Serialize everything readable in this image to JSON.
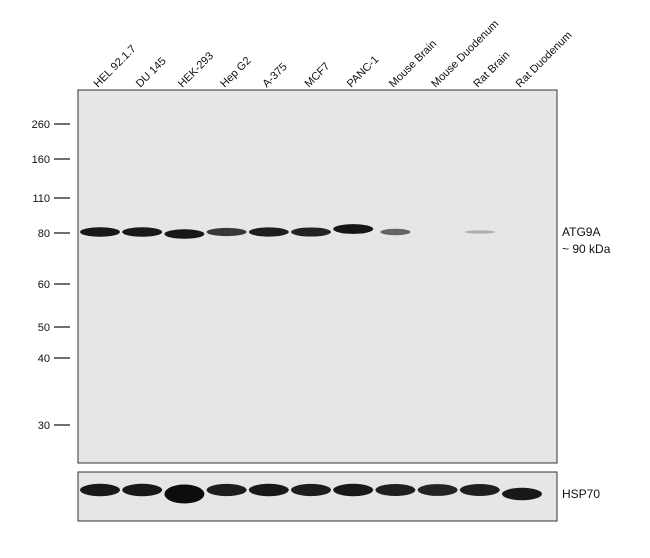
{
  "lanes": [
    "HEL 92.1.7",
    "DU 145",
    "HEK-293",
    "Hep G2",
    "A-375",
    "MCF7",
    "PANC-1",
    "Mouse Brain",
    "Mouse Duodenum",
    "Rat Brain",
    "Rat Duodenum"
  ],
  "markers": [
    {
      "label": "260",
      "kda": 260
    },
    {
      "label": "160",
      "kda": 160
    },
    {
      "label": "110",
      "kda": 110
    },
    {
      "label": "80",
      "kda": 80
    },
    {
      "label": "60",
      "kda": 60
    },
    {
      "label": "50",
      "kda": 50
    },
    {
      "label": "40",
      "kda": 40
    },
    {
      "label": "30",
      "kda": 30
    }
  ],
  "main_blot": {
    "target_label": "ATG9A",
    "size_label": "~ 90 kDa",
    "band_intensity": [
      0.95,
      0.95,
      0.95,
      0.8,
      0.92,
      0.9,
      0.97,
      0.6,
      0,
      0.25,
      0
    ]
  },
  "loading_blot": {
    "target_label": "HSP70",
    "band_intensity": [
      0.95,
      0.95,
      1,
      0.93,
      0.95,
      0.93,
      0.95,
      0.92,
      0.9,
      0.92,
      0.95
    ]
  },
  "colors": {
    "membrane": "#e6e6e6",
    "band": "#0d0d0d"
  }
}
